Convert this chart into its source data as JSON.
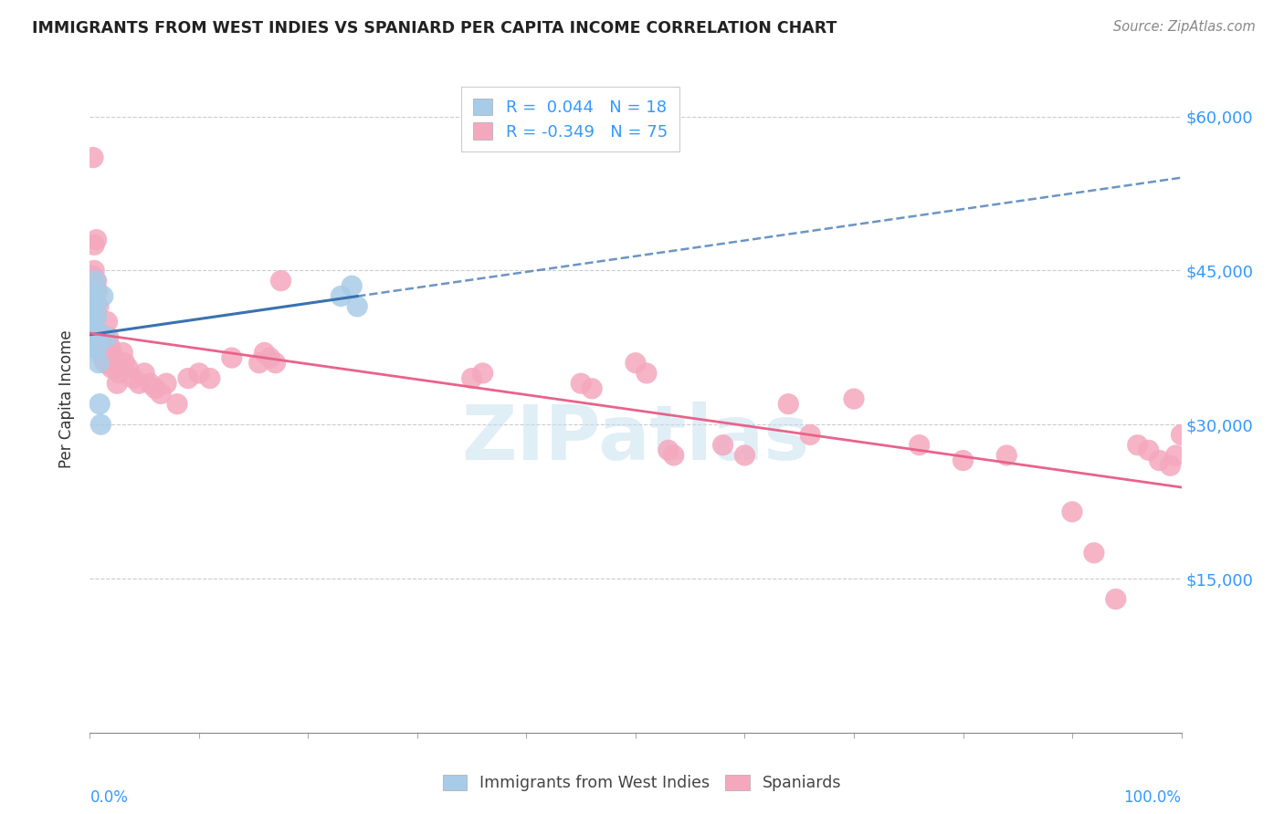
{
  "title": "IMMIGRANTS FROM WEST INDIES VS SPANIARD PER CAPITA INCOME CORRELATION CHART",
  "source": "Source: ZipAtlas.com",
  "ylabel": "Per Capita Income",
  "legend_label1": "Immigrants from West Indies",
  "legend_label2": "Spaniards",
  "blue_color": "#a8cce8",
  "pink_color": "#f4a8be",
  "blue_line_color": "#3a72b0",
  "pink_line_color": "#e8638a",
  "axis_color": "#3399ff",
  "watermark": "ZIPatlas",
  "blue_x": [
    0.002,
    0.003,
    0.004,
    0.004,
    0.005,
    0.005,
    0.006,
    0.006,
    0.007,
    0.007,
    0.008,
    0.009,
    0.01,
    0.012,
    0.015,
    0.23,
    0.24,
    0.245
  ],
  "blue_y": [
    37500,
    40000,
    42000,
    43000,
    41500,
    44000,
    38500,
    40500,
    37500,
    39000,
    36000,
    32000,
    30000,
    42500,
    38500,
    42500,
    43500,
    41500
  ],
  "pink_x": [
    0.002,
    0.003,
    0.003,
    0.004,
    0.004,
    0.005,
    0.005,
    0.006,
    0.006,
    0.007,
    0.008,
    0.008,
    0.009,
    0.01,
    0.01,
    0.011,
    0.012,
    0.013,
    0.014,
    0.015,
    0.016,
    0.017,
    0.018,
    0.019,
    0.02,
    0.021,
    0.022,
    0.023,
    0.025,
    0.027,
    0.03,
    0.032,
    0.035,
    0.04,
    0.045,
    0.05,
    0.055,
    0.06,
    0.065,
    0.07,
    0.08,
    0.09,
    0.1,
    0.11,
    0.13,
    0.155,
    0.16,
    0.165,
    0.17,
    0.175,
    0.35,
    0.36,
    0.45,
    0.46,
    0.5,
    0.51,
    0.53,
    0.535,
    0.58,
    0.6,
    0.64,
    0.66,
    0.7,
    0.76,
    0.8,
    0.84,
    0.9,
    0.92,
    0.94,
    0.96,
    0.97,
    0.98,
    0.99,
    0.995,
    1.0
  ],
  "pink_y": [
    44500,
    56000,
    43000,
    47500,
    45000,
    43000,
    41000,
    48000,
    44000,
    43000,
    41500,
    39000,
    38500,
    37500,
    38000,
    37000,
    36500,
    37000,
    36000,
    38000,
    40000,
    38500,
    36000,
    37500,
    35500,
    36000,
    36500,
    35500,
    34000,
    35000,
    37000,
    36000,
    35500,
    34500,
    34000,
    35000,
    34000,
    33500,
    33000,
    34000,
    32000,
    34500,
    35000,
    34500,
    36500,
    36000,
    37000,
    36500,
    36000,
    44000,
    34500,
    35000,
    34000,
    33500,
    36000,
    35000,
    27500,
    27000,
    28000,
    27000,
    32000,
    29000,
    32500,
    28000,
    26500,
    27000,
    21500,
    17500,
    13000,
    28000,
    27500,
    26500,
    26000,
    27000,
    29000
  ]
}
